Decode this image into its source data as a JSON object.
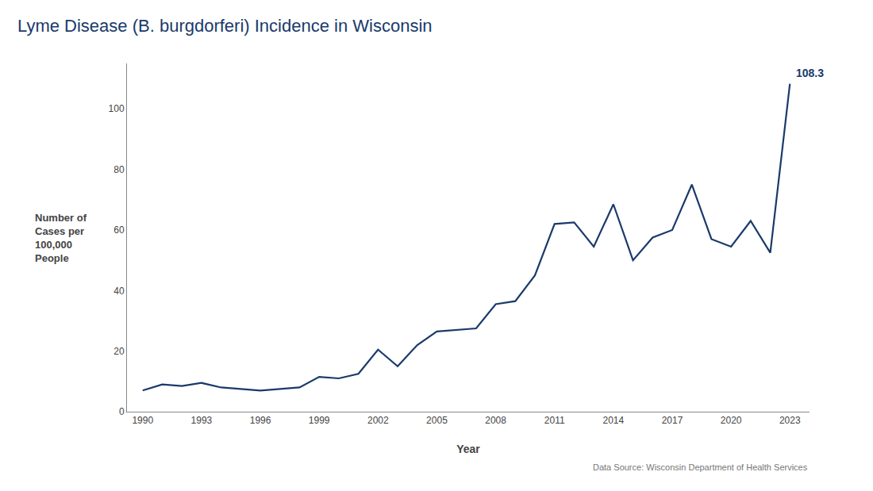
{
  "chart_data": {
    "type": "line",
    "title": "Lyme Disease (B. burgdorferi) Incidence in Wisconsin",
    "xlabel": "Year",
    "ylabel": "Number of\nCases per\n100,000\nPeople",
    "x": [
      1990,
      1991,
      1992,
      1993,
      1994,
      1995,
      1996,
      1997,
      1998,
      1999,
      2000,
      2001,
      2002,
      2003,
      2004,
      2005,
      2006,
      2007,
      2008,
      2009,
      2010,
      2011,
      2012,
      2013,
      2014,
      2015,
      2016,
      2017,
      2018,
      2019,
      2020,
      2021,
      2022,
      2023
    ],
    "values": [
      7.0,
      9.0,
      8.5,
      9.5,
      8.0,
      7.5,
      7.0,
      7.5,
      8.0,
      11.5,
      11.0,
      12.5,
      20.5,
      15.0,
      22.0,
      26.5,
      27.0,
      27.5,
      35.5,
      36.5,
      45.0,
      62.0,
      62.5,
      54.5,
      68.5,
      50.0,
      57.5,
      60.0,
      75.0,
      57.0,
      54.5,
      63.0,
      52.5,
      108.3
    ],
    "color": "#1a3a6b",
    "annotation": "108.3",
    "source": "Data Source: Wisconsin Department of Health Services",
    "xlim": [
      1989.2,
      2024.0
    ],
    "xticks": [
      1990,
      1993,
      1996,
      1999,
      2002,
      2005,
      2008,
      2011,
      2014,
      2017,
      2020,
      2023
    ],
    "ylim": [
      0,
      115
    ],
    "yticks": [
      0,
      20,
      40,
      60,
      80,
      100
    ],
    "grid": false
  }
}
